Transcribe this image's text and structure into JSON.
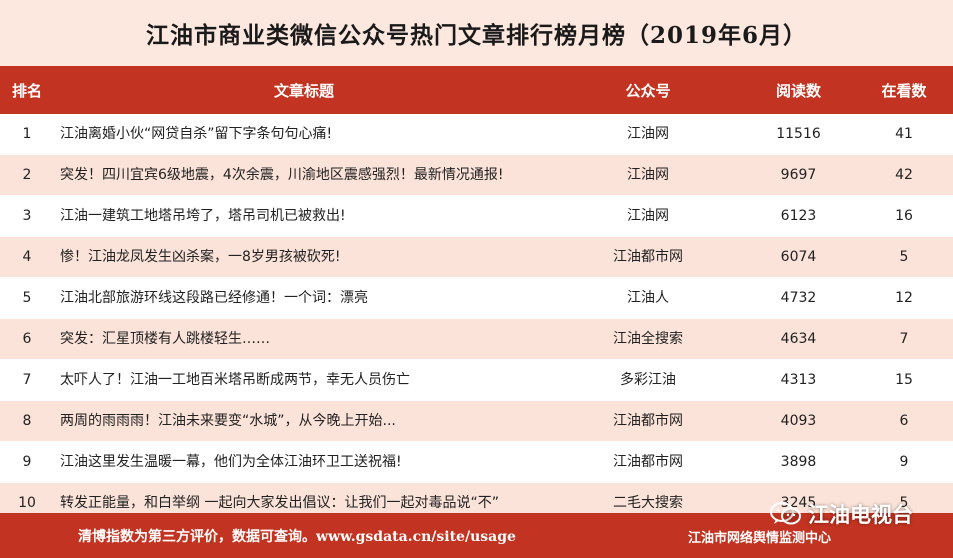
{
  "title": "江油市商业类微信公众号热门文章排行榜月榜（2019年6月）",
  "headers": [
    "排名",
    "文章标题",
    "公众号",
    "阅读数",
    "在看数"
  ],
  "rows": [
    {
      "rank": "1",
      "title": "江油离婚小伙“网贷自杀”留下字条句句心痛!",
      "account": "江油网",
      "reads": "11516",
      "likes": "41"
    },
    {
      "rank": "2",
      "title": "突发！四川宜宾6级地震，4次余震，川渝地区震感强烈！最新情况通报!",
      "account": "江油网",
      "reads": "9697",
      "likes": "42"
    },
    {
      "rank": "3",
      "title": "江油一建筑工地塔吊垮了，塔吊司机已被救出!",
      "account": "江油网",
      "reads": "6123",
      "likes": "16"
    },
    {
      "rank": "4",
      "title": "惨！江油龙凤发生凶杀案，一8岁男孩被砍死!",
      "account": "江油都市网",
      "reads": "6074",
      "likes": "5"
    },
    {
      "rank": "5",
      "title": "江油北部旅游环线这段路已经修通！一个词：漂亮",
      "account": "江油人",
      "reads": "4732",
      "likes": "12"
    },
    {
      "rank": "6",
      "title": "突发：汇星顶楼有人跳楼轻生……",
      "account": "江油全搜索",
      "reads": "4634",
      "likes": "7"
    },
    {
      "rank": "7",
      "title": "太吓人了！江油一工地百米塔吊断成两节，幸无人员伤亡",
      "account": "多彩江油",
      "reads": "4313",
      "likes": "15"
    },
    {
      "rank": "8",
      "title": "两周的雨雨雨！江油未来要变“水城”，从今晚上开始...",
      "account": "江油都市网",
      "reads": "4093",
      "likes": "6"
    },
    {
      "rank": "9",
      "title": "江油这里发生温暖一幕，他们为全体江油环卫工送祝福!",
      "account": "江油都市网",
      "reads": "3898",
      "likes": "9"
    },
    {
      "rank": "10",
      "title": "转发正能量，和白举纲 一起向大家发出倡议：让我们一起对毒品说“不”",
      "account": "二毛大搜索",
      "reads": "3245",
      "likes": "5"
    }
  ],
  "footer": {
    "note": "清博指数为第三方评价，数据可查询。www.gsdata.cn/site/usage",
    "org": "江油市网络舆情监测中心"
  },
  "watermark": {
    "icon": "wechat-icon",
    "text": "江油电视台"
  },
  "colors": {
    "accent": "#c23321",
    "row_alt": "#fbe3d9",
    "title_bg": "#fde8e0"
  }
}
